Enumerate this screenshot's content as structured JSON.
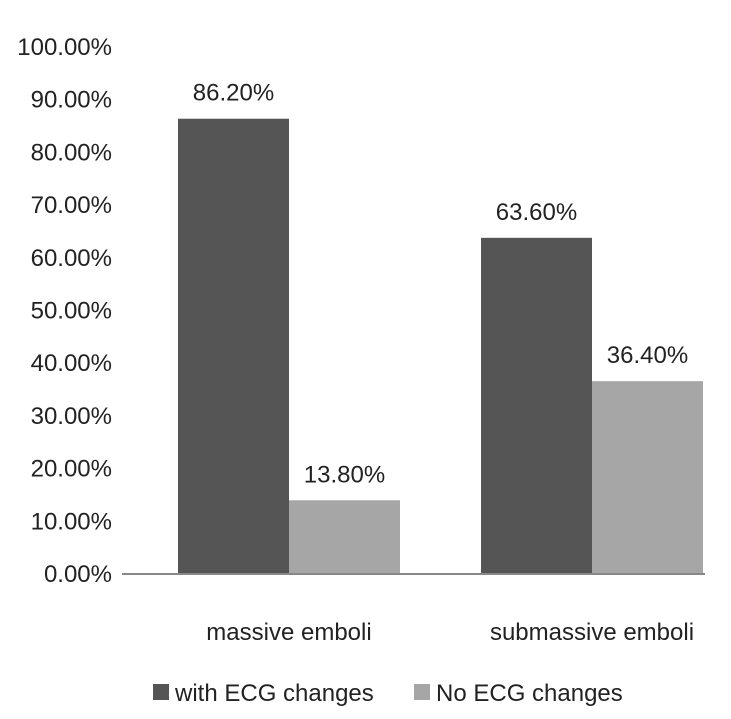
{
  "chart_data": {
    "type": "bar",
    "categories": [
      "massive emboli",
      "submassive emboli"
    ],
    "series": [
      {
        "name": "with ECG changes",
        "values": [
          86.2,
          63.6
        ],
        "labels": [
          "86.20%",
          "63.60%"
        ],
        "color": "#555555"
      },
      {
        "name": "No ECG changes",
        "values": [
          13.8,
          36.4
        ],
        "labels": [
          "13.80%",
          "36.40%"
        ],
        "color": "#a6a6a6"
      }
    ],
    "ylim": [
      0,
      100
    ],
    "yticks": [
      0,
      10,
      20,
      30,
      40,
      50,
      60,
      70,
      80,
      90,
      100
    ],
    "ytick_labels": [
      "0.00%",
      "10.00%",
      "20.00%",
      "30.00%",
      "40.00%",
      "50.00%",
      "60.00%",
      "70.00%",
      "80.00%",
      "90.00%",
      "100.00%"
    ],
    "grid": false,
    "legend_position": "bottom"
  }
}
